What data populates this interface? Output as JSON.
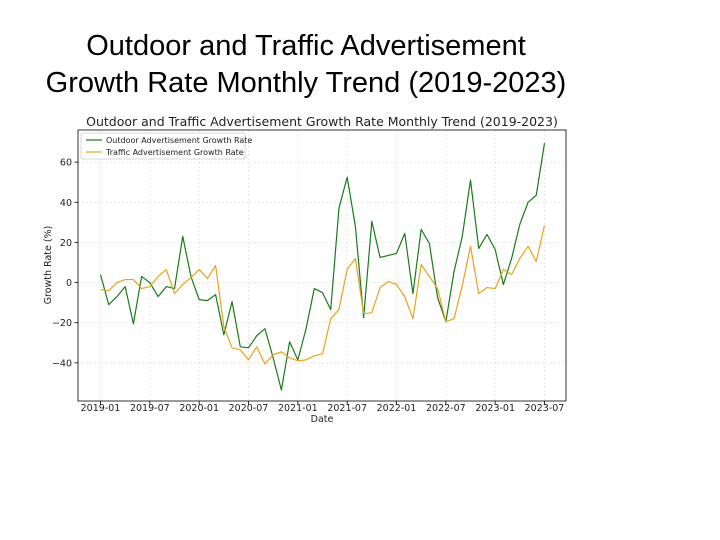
{
  "slide": {
    "title_line1": "Outdoor and Traffic Advertisement",
    "title_line2": "Growth Rate Monthly Trend (2019-2023)"
  },
  "chart_data": {
    "type": "line",
    "title": "Outdoor and Traffic Advertisement Growth Rate Monthly Trend (2019-2023)",
    "xlabel": "Date",
    "ylabel": "Growth Rate (%)",
    "ylim": [
      -59,
      76
    ],
    "yticks": [
      -40,
      -20,
      0,
      20,
      40,
      60
    ],
    "xticks": [
      "2019-01",
      "2019-07",
      "2020-01",
      "2020-07",
      "2021-01",
      "2021-07",
      "2022-01",
      "2022-07",
      "2023-01",
      "2023-07"
    ],
    "xtick_index": [
      0,
      6,
      12,
      18,
      24,
      30,
      36,
      42,
      48,
      54
    ],
    "grid": true,
    "legend_position": "top-left",
    "series": [
      {
        "name": "Outdoor Advertisement Growth Rate",
        "color": "#1a7a1a",
        "values": [
          4,
          -11,
          -7,
          -2,
          -20.5,
          3,
          0,
          -7,
          -2,
          -3,
          23,
          3,
          -8.5,
          -9,
          -6,
          -26,
          -9.5,
          -32,
          -32.5,
          -26.5,
          -23,
          -37.5,
          -53.5,
          -29.5,
          -38.5,
          -23,
          -3,
          -5,
          -13.5,
          37,
          52.5,
          28,
          -17.5,
          30.5,
          12.5,
          13.5,
          14.5,
          24.5,
          -5.5,
          26.5,
          19.5,
          -7.5,
          -19.5,
          5.5,
          23,
          51,
          17,
          24,
          16.5,
          -1,
          12,
          29,
          40,
          43.5,
          69.5
        ]
      },
      {
        "name": "Traffic Advertisement Growth Rate",
        "color": "#e8a31e",
        "values": [
          -3.5,
          -4,
          0,
          1.5,
          1.5,
          -3,
          -2,
          3,
          6.5,
          -5.5,
          -1,
          2.5,
          6.5,
          2,
          8.5,
          -22,
          -32.5,
          -33.5,
          -38.5,
          -32,
          -40.5,
          -36,
          -34.5,
          -37.5,
          -39,
          -38.5,
          -36.5,
          -35.5,
          -18,
          -13.5,
          6.5,
          12,
          -15.5,
          -15,
          -2.5,
          0.5,
          -1,
          -7,
          -18,
          9,
          3,
          -3,
          -19.5,
          -18,
          -1.5,
          18,
          -5.5,
          -2.5,
          -3,
          6.5,
          4,
          12,
          18,
          10.5,
          28.5
        ]
      }
    ]
  }
}
